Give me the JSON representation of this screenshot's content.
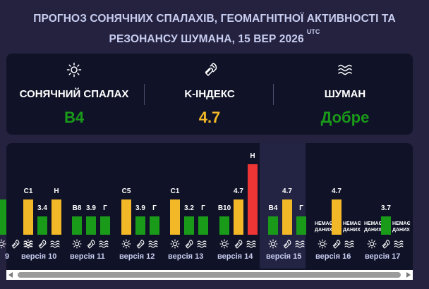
{
  "header": {
    "title_line1": "ПРОГНОЗ СОНЯЧНИХ СПАЛАХІВ, ГЕОМАГНІТНОЇ АКТИВНОСТІ ТА",
    "title_line2": "РЕЗОНАНСУ ШУМАНА, 15 ВЕР 2026",
    "tz": "UTC"
  },
  "summary": [
    {
      "icon": "sun-icon",
      "label": "СОНЯЧНИЙ СПАЛАХ",
      "value": "B4",
      "color": "#1a9a19"
    },
    {
      "icon": "magnet-icon",
      "label": "K-ІНДЕКС",
      "value": "4.7",
      "color": "#f3b827"
    },
    {
      "icon": "waves-icon",
      "label": "ШУМАН",
      "value": "Добре",
      "color": "#1a9a19"
    }
  ],
  "colors": {
    "green": "#1a9a19",
    "yellow": "#f3b827",
    "red": "#ec3534",
    "background": "#24223f",
    "panel": "#101327"
  },
  "timeline": {
    "versions": [
      {
        "version": "9",
        "flare": {
          "label": "",
          "level": "high",
          "color": "green"
        },
        "kp": null,
        "schumann": null
      },
      {
        "version": "версія 10",
        "flare": {
          "label": "C1",
          "level": "high",
          "color": "yellow"
        },
        "kp": {
          "label": "3.4",
          "level": "mid",
          "color": "green"
        },
        "schumann": {
          "label": "Н",
          "level": "high",
          "color": "yellow"
        }
      },
      {
        "version": "версія 11",
        "flare": {
          "label": "B8",
          "level": "mid",
          "color": "green"
        },
        "kp": {
          "label": "3.9",
          "level": "mid",
          "color": "green"
        },
        "schumann": {
          "label": "Г",
          "level": "mid",
          "color": "green"
        }
      },
      {
        "version": "версія 12",
        "flare": {
          "label": "C5",
          "level": "high",
          "color": "yellow"
        },
        "kp": {
          "label": "3.9",
          "level": "mid",
          "color": "green"
        },
        "schumann": {
          "label": "Г",
          "level": "mid",
          "color": "green"
        }
      },
      {
        "version": "версія 13",
        "flare": {
          "label": "C1",
          "level": "high",
          "color": "yellow"
        },
        "kp": {
          "label": "3.2",
          "level": "mid",
          "color": "green"
        },
        "schumann": {
          "label": "Г",
          "level": "mid",
          "color": "green"
        }
      },
      {
        "version": "версія 14",
        "flare": {
          "label": "B10",
          "level": "mid",
          "color": "green"
        },
        "kp": {
          "label": "4.7",
          "level": "high",
          "color": "yellow"
        },
        "schumann": {
          "label": "Н",
          "level": "max",
          "color": "red"
        }
      },
      {
        "version": "версія 15",
        "flare": {
          "label": "B4",
          "level": "mid",
          "color": "green"
        },
        "kp": {
          "label": "4.7",
          "level": "high",
          "color": "yellow"
        },
        "schumann": {
          "label": "Г",
          "level": "mid",
          "color": "green"
        }
      },
      {
        "version": "версія 16",
        "flare": null,
        "kp": {
          "label": "4.7",
          "level": "high",
          "color": "yellow"
        },
        "schumann": null
      },
      {
        "version": "версія 17",
        "flare": null,
        "kp": {
          "label": "3.7",
          "level": "mid",
          "color": "green"
        },
        "schumann": null
      }
    ],
    "no_data_label": "НЕМАЄ ДАНИХ"
  }
}
